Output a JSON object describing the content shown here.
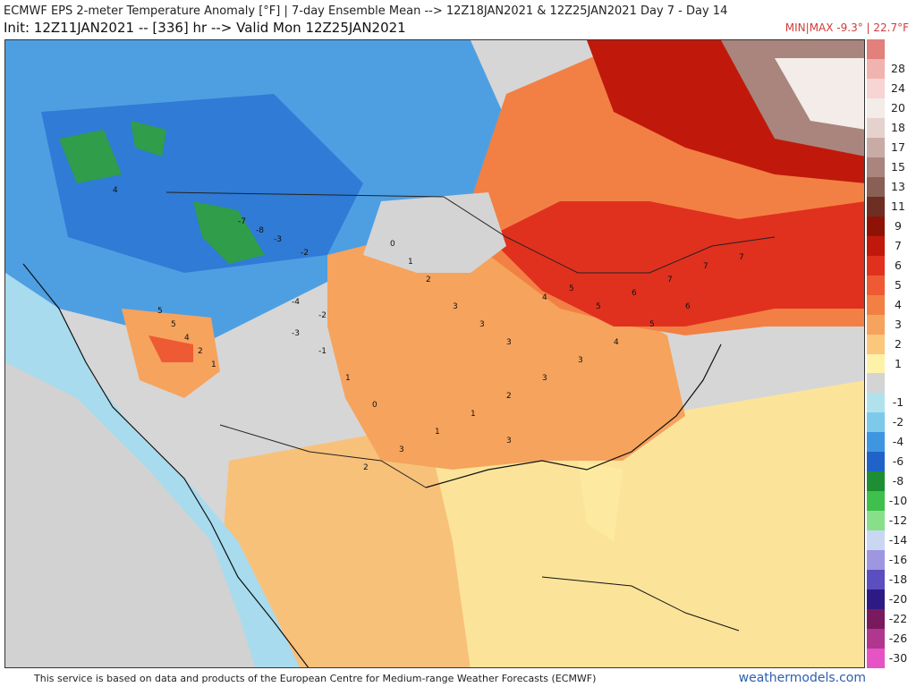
{
  "header": {
    "title_line1": "ECMWF EPS 2-meter Temperature Anomaly [°F] | 7-day Ensemble Mean --> 12Z18JAN2021 & 12Z25JAN2021   Day 7 - Day 14",
    "title_line2": "Init: 12Z11JAN2021 -- [336] hr --> Valid Mon 12Z25JAN2021",
    "minmax": "MIN|MAX -9.3° | 22.7°F"
  },
  "colorbar": {
    "entries": [
      {
        "label": "",
        "color": "#e2807c"
      },
      {
        "label": "28",
        "color": "#f0b3b0"
      },
      {
        "label": "24",
        "color": "#f6d5d3"
      },
      {
        "label": "20",
        "color": "#f3ece9"
      },
      {
        "label": "18",
        "color": "#e6d2cd"
      },
      {
        "label": "17",
        "color": "#c9aba5"
      },
      {
        "label": "15",
        "color": "#a9857d"
      },
      {
        "label": "13",
        "color": "#8a5f56"
      },
      {
        "label": "11",
        "color": "#6d2f23"
      },
      {
        "label": "9",
        "color": "#8e1306"
      },
      {
        "label": "7",
        "color": "#c0190b"
      },
      {
        "label": "6",
        "color": "#e0311e"
      },
      {
        "label": "5",
        "color": "#ee5a33"
      },
      {
        "label": "4",
        "color": "#f28044"
      },
      {
        "label": "3",
        "color": "#f6a35d"
      },
      {
        "label": "2",
        "color": "#fbc77a"
      },
      {
        "label": "1",
        "color": "#fef2a8"
      },
      {
        "label": "",
        "color": "#d4d4d4"
      },
      {
        "label": "-1",
        "color": "#b0e2ee"
      },
      {
        "label": "-2",
        "color": "#7cc9ea"
      },
      {
        "label": "-4",
        "color": "#3e96e0"
      },
      {
        "label": "-6",
        "color": "#1f63c9"
      },
      {
        "label": "-8",
        "color": "#1e8e34"
      },
      {
        "label": "-10",
        "color": "#3fbf4b"
      },
      {
        "label": "-12",
        "color": "#88df8a"
      },
      {
        "label": "-14",
        "color": "#c9d7f2"
      },
      {
        "label": "-16",
        "color": "#9f96e2"
      },
      {
        "label": "-18",
        "color": "#5b4fbf"
      },
      {
        "label": "-20",
        "color": "#2d1a85"
      },
      {
        "label": "-22",
        "color": "#7a1a5e"
      },
      {
        "label": "-26",
        "color": "#b0368e"
      },
      {
        "label": "-30",
        "color": "#e653c4"
      }
    ]
  },
  "map": {
    "anomaly_labels": [
      {
        "t": "4"
      },
      {
        "t": "-7"
      },
      {
        "t": "-8"
      },
      {
        "t": "-3"
      },
      {
        "t": "-2"
      },
      {
        "t": "5"
      },
      {
        "t": "5"
      },
      {
        "t": "4"
      },
      {
        "t": "2"
      },
      {
        "t": "1"
      },
      {
        "t": "-4"
      },
      {
        "t": "-2"
      },
      {
        "t": "0"
      },
      {
        "t": "1"
      },
      {
        "t": "2"
      },
      {
        "t": "3"
      },
      {
        "t": "3"
      },
      {
        "t": "3"
      },
      {
        "t": "4"
      },
      {
        "t": "5"
      },
      {
        "t": "5"
      },
      {
        "t": "6"
      },
      {
        "t": "7"
      },
      {
        "t": "7"
      },
      {
        "t": "7"
      },
      {
        "t": "6"
      },
      {
        "t": "5"
      },
      {
        "t": "4"
      },
      {
        "t": "3"
      },
      {
        "t": "3"
      },
      {
        "t": "2"
      },
      {
        "t": "1"
      },
      {
        "t": "1"
      },
      {
        "t": "3"
      },
      {
        "t": "2"
      },
      {
        "t": "0"
      },
      {
        "t": "1"
      },
      {
        "t": "-1"
      },
      {
        "t": "-3"
      },
      {
        "t": "3"
      }
    ]
  },
  "footer": {
    "note": "This service is based on data and products of the European Centre for Medium-range Weather Forecasts (ECMWF)",
    "brand": "weathermodels.com"
  }
}
